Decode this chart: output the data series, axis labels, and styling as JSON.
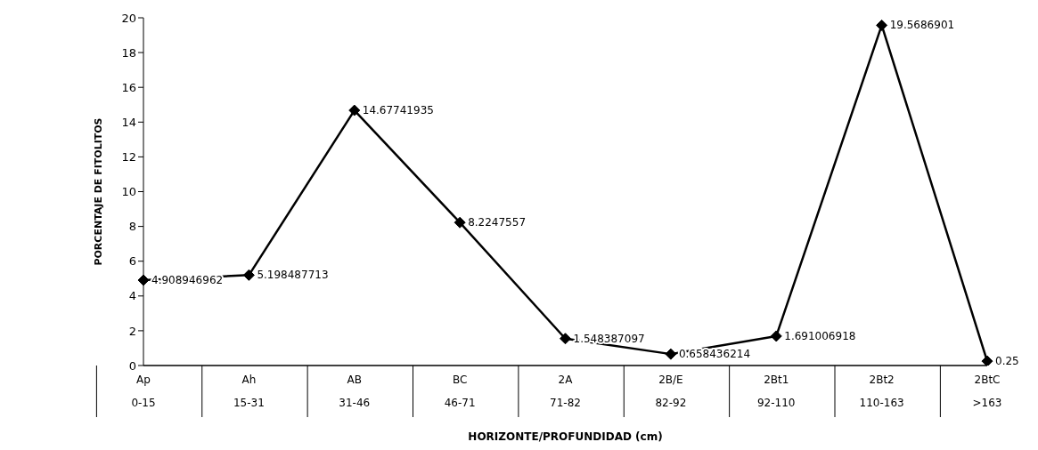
{
  "chart_data": {
    "type": "line",
    "categories": [
      "Ap\n0-15",
      "Ah\n15-31",
      "AB\n31-46",
      "BC\n46-71",
      "2A\n71-82",
      "2B/E\n82-92",
      "2Bt1\n92-110",
      "2Bt2\n110-163",
      "2BtC\n>163"
    ],
    "values": [
      4.908946962,
      5.198487713,
      14.67741935,
      8.2247557,
      1.548387097,
      0.658436214,
      1.691006918,
      19.5686901,
      0.25
    ],
    "color": "#000000",
    "xlabel": "HORIZONTE/PROFUNDIDAD (cm)",
    "ylabel": "PORCENTAJE DE FITOLITOS",
    "ylim": [
      0,
      20
    ],
    "yticks": [
      0,
      2,
      4,
      6,
      8,
      10,
      12,
      14,
      16,
      18,
      20
    ],
    "data_labels": true,
    "marker": "diamond",
    "grid": false,
    "legend": false
  }
}
